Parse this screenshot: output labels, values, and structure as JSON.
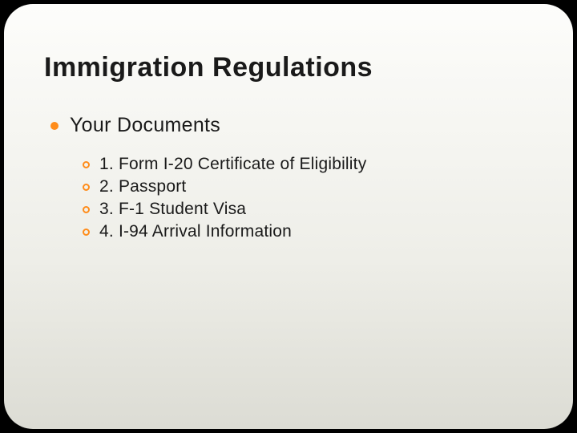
{
  "slide": {
    "title": "Immigration Regulations",
    "background_gradient": [
      "#fdfdfb",
      "#eeeee8",
      "#dcdcd4"
    ],
    "border_radius": 36,
    "title_fontsize": 34,
    "title_color": "#1a1a1a",
    "bullet_accent": "#ff8c1a",
    "level1": {
      "text": "Your Documents",
      "fontsize": 25,
      "bullet_type": "filled-circle",
      "bullet_size": 10
    },
    "level2": {
      "fontsize": 21,
      "bullet_type": "hollow-circle",
      "bullet_size": 9,
      "items": [
        "1. Form I-20 Certificate of Eligibility",
        "2. Passport",
        "3. F-1 Student Visa",
        "4. I-94 Arrival Information"
      ]
    }
  }
}
